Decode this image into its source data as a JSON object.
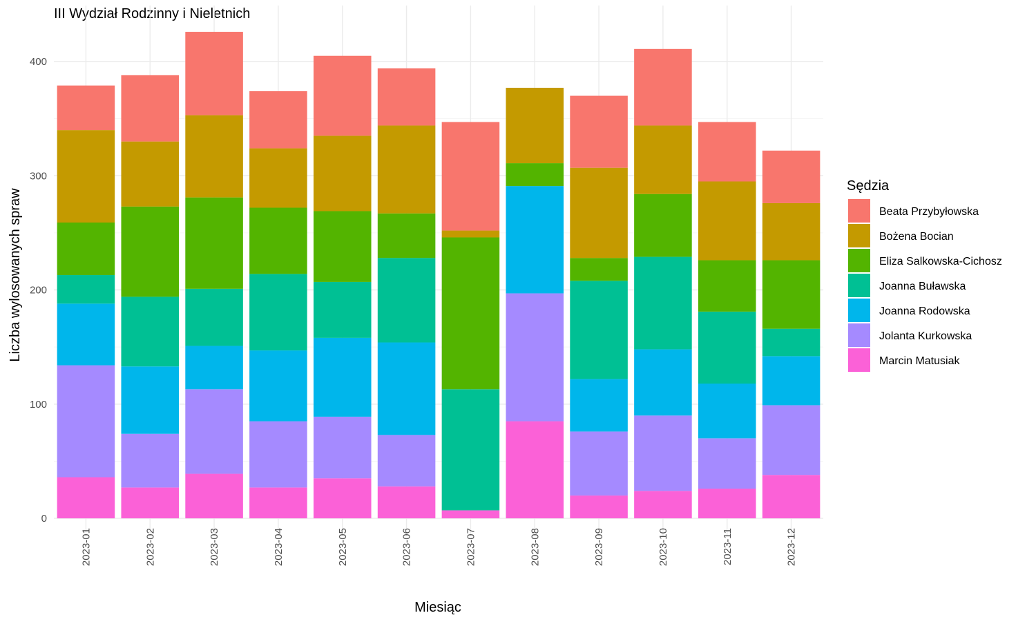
{
  "chart_data": {
    "type": "bar",
    "stacked": true,
    "title": "III Wydział Rodzinny i Nieletnich",
    "xlabel": "Miesiąc",
    "ylabel": "Liczba wylosowanych spraw",
    "ylim": [
      0,
      440
    ],
    "yticks": [
      0,
      100,
      200,
      300,
      400
    ],
    "grid": true,
    "legend_title": "Sędzia",
    "legend_position": "right",
    "categories": [
      "2023-01",
      "2023-02",
      "2023-03",
      "2023-04",
      "2023-05",
      "2023-06",
      "2023-07",
      "2023-08",
      "2023-09",
      "2023-10",
      "2023-11",
      "2023-12"
    ],
    "series": [
      {
        "name": "Marcin Matusiak",
        "color": "#FB61D7",
        "values": [
          36,
          27,
          39,
          27,
          35,
          28,
          7,
          85,
          20,
          24,
          26,
          38
        ]
      },
      {
        "name": "Jolanta Kurkowska",
        "color": "#A58AFF",
        "values": [
          98,
          47,
          74,
          58,
          54,
          45,
          0,
          112,
          56,
          66,
          44,
          61
        ]
      },
      {
        "name": "Joanna Rodowska",
        "color": "#00B6EB",
        "values": [
          54,
          59,
          38,
          62,
          69,
          81,
          0,
          94,
          46,
          58,
          48,
          43
        ]
      },
      {
        "name": "Joanna Buławska",
        "color": "#00C094",
        "values": [
          25,
          61,
          50,
          67,
          49,
          74,
          106,
          0,
          86,
          81,
          63,
          24
        ]
      },
      {
        "name": "Eliza Salkowska-Cichosz",
        "color": "#53B400",
        "values": [
          46,
          79,
          80,
          58,
          62,
          39,
          133,
          20,
          20,
          55,
          45,
          60
        ]
      },
      {
        "name": "Bożena Bocian",
        "color": "#C49A00",
        "values": [
          81,
          57,
          72,
          52,
          66,
          77,
          6,
          66,
          79,
          60,
          69,
          50
        ]
      },
      {
        "name": "Beata Przybyłowska",
        "color": "#F8766D",
        "values": [
          39,
          58,
          73,
          50,
          70,
          50,
          95,
          0,
          63,
          67,
          52,
          46
        ]
      }
    ],
    "legend_order": [
      "Beata Przybyłowska",
      "Bożena Bocian",
      "Eliza Salkowska-Cichosz",
      "Joanna Buławska",
      "Joanna Rodowska",
      "Jolanta Kurkowska",
      "Marcin Matusiak"
    ]
  }
}
